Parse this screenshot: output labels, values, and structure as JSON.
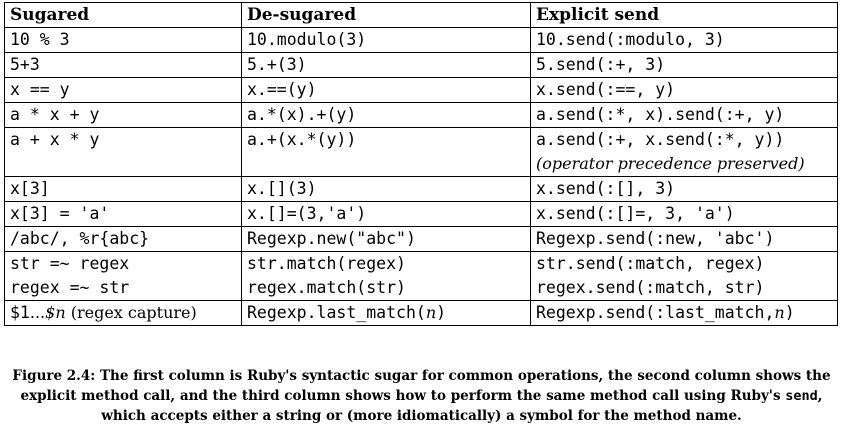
{
  "table": {
    "headers": [
      "Sugared",
      "De-sugared",
      "Explicit send"
    ],
    "header_explicit_prefix": "Explicit ",
    "header_explicit_code": "send",
    "rows": [
      [
        "10 % 3",
        "10.modulo(3)",
        "10.send(:modulo, 3)"
      ],
      [
        "5+3",
        "5.+(3)",
        "5.send(:+, 3)"
      ],
      [
        "x == y",
        "x.==(y)",
        "x.send(:==, y)"
      ],
      [
        "a * x + y",
        "a.*(x).+(y)",
        "a.send(:*, x).send(:+, y)"
      ],
      [
        "a + x * y",
        "a.+(x.*(y))",
        "a.send(:+, x.send(:*, y))"
      ],
      [
        "x[3]",
        "x.[](3)",
        "x.send(:[], 3)"
      ],
      [
        "x[3] = 'a'",
        "x.[]=(3,'a')",
        "x.send(:[]=, 3, 'a')"
      ],
      [
        "/abc/, %r{abc}",
        "Regexp.new(\"abc\")",
        "Regexp.send(:new, 'abc')"
      ],
      [
        "str =~ regex",
        "str.match(regex)",
        "str.send(:match, regex)"
      ],
      [
        "regex =~ str",
        "regex.match(str)",
        "regex.send(:match, str)"
      ],
      [
        "$1...$n (regex capture)",
        "Regexp.last_match(n)",
        "Regexp.send(:last_match,n)"
      ]
    ],
    "precedence_note": "(operator precedence preserved)",
    "capture_sugar_prefix": "$1",
    "capture_sugar_dots": "...",
    "capture_sugar_n": "$n",
    "capture_sugar_suffix": " (regex capture)",
    "last_match_prefix": "Regexp.last_match(",
    "last_match_arg": "n",
    "last_match_suffix": ")",
    "send_last_match_prefix": "Regexp.send(:last_match,",
    "send_last_match_arg": "n",
    "send_last_match_suffix": ")"
  },
  "caption": {
    "label": "Figure 2.4:",
    "text_before_code": " The first column is Ruby's syntactic sugar for common operations, the second column shows the explicit method call, and the third column shows how to perform the same method call using Ruby's ",
    "code": "send",
    "text_after_code": ", which accepts either a string or (more idiomatically) a symbol for the method name."
  }
}
